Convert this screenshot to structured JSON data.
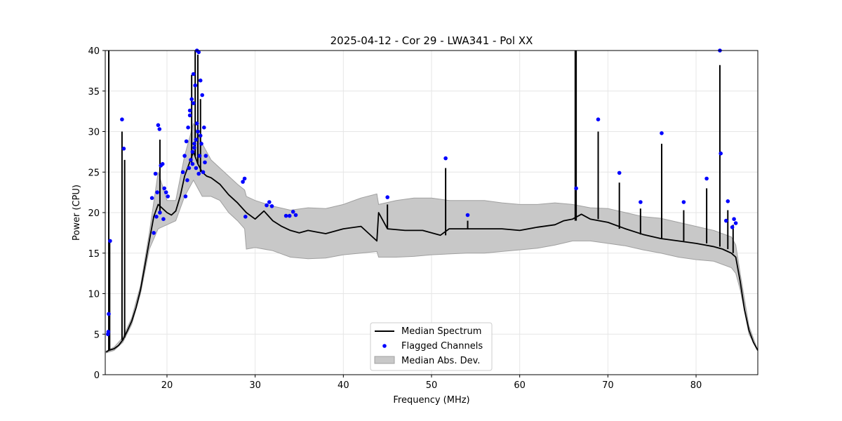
{
  "chart_data": {
    "type": "line",
    "title": "2025-04-12 - Cor 29 - LWA341 - Pol XX",
    "xlabel": "Frequency (MHz)",
    "ylabel": "Power (CPU)",
    "xlim": [
      13,
      87
    ],
    "ylim": [
      0,
      40
    ],
    "xticks": [
      20,
      30,
      40,
      50,
      60,
      70,
      80
    ],
    "xtick_labels": [
      "20",
      "30",
      "40",
      "50",
      "60",
      "70",
      "80"
    ],
    "yticks": [
      0,
      5,
      10,
      15,
      20,
      25,
      30,
      35,
      40
    ],
    "ytick_labels": [
      "0",
      "5",
      "10",
      "15",
      "20",
      "25",
      "30",
      "35",
      "40"
    ],
    "grid": true,
    "legend_position": "lower-center",
    "legend": [
      "Median Spectrum",
      "Flagged Channels",
      "Median Abs. Dev."
    ],
    "colors": {
      "median": "#000000",
      "flagged": "#0000ff",
      "mad": "#c8c8c8",
      "mad_edge": "#a0a0a0",
      "grid": "#e6e6e6"
    },
    "series": [
      {
        "name": "Median Spectrum",
        "x": [
          13.1,
          13.4,
          14,
          14.5,
          15,
          15.5,
          16,
          16.5,
          17,
          17.5,
          18,
          18.5,
          19,
          19.5,
          20,
          20.5,
          21,
          21.5,
          22,
          22.5,
          23,
          23.5,
          24,
          24.5,
          25,
          26,
          27,
          28,
          29,
          30,
          31,
          32,
          33,
          34,
          35,
          36,
          37,
          38,
          40,
          42,
          43.8,
          44,
          45,
          47,
          49,
          51,
          52,
          54,
          56,
          58,
          60,
          62,
          64,
          65,
          66,
          67,
          68,
          70,
          72,
          74,
          76,
          78,
          80,
          82,
          83,
          84,
          84.5,
          85,
          85.5,
          86,
          86.5,
          87
        ],
        "y": [
          2.8,
          3.0,
          3.2,
          3.6,
          4.3,
          5.4,
          6.6,
          8.3,
          10.5,
          13.5,
          16.5,
          19.5,
          21.0,
          20.5,
          20.0,
          19.7,
          20.2,
          22.0,
          24.5,
          26.0,
          27.5,
          26.0,
          25.0,
          24.5,
          24.3,
          23.5,
          22.2,
          21.2,
          20.0,
          19.2,
          20.2,
          19.0,
          18.3,
          17.8,
          17.5,
          17.8,
          17.6,
          17.4,
          18.0,
          18.3,
          16.5,
          20.0,
          18.0,
          17.8,
          17.8,
          17.2,
          18.0,
          18.0,
          18.0,
          18.0,
          17.8,
          18.2,
          18.5,
          19.0,
          19.2,
          19.8,
          19.2,
          18.8,
          18.0,
          17.3,
          16.8,
          16.5,
          16.2,
          15.8,
          15.5,
          15.0,
          14.5,
          11.5,
          8.0,
          5.5,
          4.0,
          3.0
        ]
      },
      {
        "name": "Median Abs. Dev.",
        "x": [
          13.1,
          14,
          15,
          16,
          17,
          18,
          19,
          20,
          21,
          22,
          23,
          24,
          25,
          26,
          27,
          28,
          28.8,
          29,
          30,
          32,
          34,
          36,
          38,
          40,
          42,
          43.8,
          44,
          46,
          48,
          50,
          52,
          54,
          56,
          58,
          60,
          62,
          64,
          66,
          68,
          70,
          72,
          74,
          76,
          78,
          80,
          82,
          84,
          84.5,
          85,
          86,
          87
        ],
        "upper": [
          2.9,
          3.4,
          4.6,
          7.0,
          11.0,
          17.5,
          25.0,
          21.5,
          21.5,
          27.0,
          31.0,
          28.5,
          26.5,
          25.5,
          24.5,
          23.5,
          22.8,
          22.0,
          21.5,
          20.8,
          20.3,
          20.6,
          20.5,
          21.0,
          21.8,
          22.3,
          21.0,
          21.5,
          21.8,
          21.8,
          21.5,
          21.5,
          21.5,
          21.2,
          21.0,
          21.0,
          21.2,
          21.0,
          20.6,
          20.5,
          20.0,
          19.5,
          19.3,
          18.8,
          18.3,
          17.8,
          17.0,
          16.0,
          12.5,
          6.0,
          3.0
        ],
        "lower": [
          2.7,
          3.0,
          4.0,
          6.2,
          10.0,
          15.5,
          18.0,
          18.5,
          19.0,
          22.0,
          24.0,
          22.0,
          22.0,
          21.5,
          20.0,
          19.0,
          18.0,
          15.5,
          15.7,
          15.3,
          14.5,
          14.3,
          14.4,
          14.8,
          15.0,
          15.2,
          14.5,
          14.5,
          14.6,
          14.8,
          14.9,
          15.0,
          15.0,
          15.2,
          15.4,
          15.6,
          16.0,
          16.5,
          16.5,
          16.2,
          15.9,
          15.4,
          15.0,
          14.5,
          14.2,
          14.0,
          13.2,
          12.5,
          10.5,
          5.0,
          3.0
        ]
      },
      {
        "name": "Spikes",
        "x": [
          13.4,
          13.5,
          14.9,
          15.2,
          19.2,
          22.8,
          23.2,
          23.5,
          23.8,
          45.0,
          51.6,
          54.1,
          66.3,
          66.4,
          68.9,
          71.3,
          73.7,
          76.1,
          78.6,
          81.2,
          82.7,
          83.6,
          84.2
        ],
        "top": [
          40,
          16.5,
          30.0,
          26.5,
          29.0,
          37.0,
          40,
          39.5,
          34.0,
          21.0,
          25.5,
          19.0,
          40,
          40,
          30.0,
          23.7,
          20.5,
          28.5,
          20.3,
          23.0,
          38.2,
          20.3,
          18.5
        ],
        "base": [
          3.0,
          3.1,
          4.3,
          4.6,
          20.0,
          26.0,
          27.0,
          26.0,
          25.0,
          18.0,
          17.2,
          18.0,
          19.0,
          19.0,
          19.2,
          18.0,
          17.3,
          16.8,
          16.5,
          16.2,
          15.8,
          15.5,
          15.0
        ]
      },
      {
        "name": "Flagged Channels",
        "x": [
          13.3,
          13.35,
          13.4,
          13.55,
          14.9,
          15.1,
          18.3,
          18.5,
          18.7,
          18.9,
          19.0,
          19.15,
          19.3,
          19.5,
          19.7,
          19.9,
          20.1,
          18.8,
          19.2,
          19.6,
          21.8,
          22.0,
          22.2,
          22.4,
          22.6,
          22.8,
          23.0,
          23.2,
          23.4,
          23.6,
          23.8,
          24.0,
          24.2,
          24.4,
          22.1,
          22.5,
          22.9,
          23.3,
          23.7,
          24.1,
          22.3,
          22.7,
          23.1,
          23.5,
          23.9,
          22.6,
          23.0,
          23.4,
          23.8,
          22.9,
          23.3,
          23.6,
          23.1,
          24.3,
          28.6,
          28.8,
          28.9,
          31.3,
          31.6,
          31.9,
          33.5,
          33.9,
          34.3,
          34.6,
          45.0,
          51.6,
          54.1,
          66.4,
          68.9,
          71.3,
          73.7,
          76.1,
          78.6,
          81.2,
          82.7,
          82.8,
          83.4,
          83.6,
          84.1,
          84.3,
          84.5
        ],
        "y": [
          5.0,
          5.3,
          7.5,
          16.5,
          31.5,
          27.9,
          21.8,
          17.5,
          24.8,
          22.5,
          30.8,
          30.3,
          25.8,
          26.0,
          23.0,
          22.5,
          22.0,
          19.5,
          20.0,
          19.2,
          25.0,
          27.0,
          28.8,
          30.5,
          32.6,
          34.0,
          37.1,
          35.7,
          40.0,
          39.8,
          36.3,
          34.5,
          30.5,
          27.0,
          22.0,
          25.5,
          27.5,
          29.0,
          27.0,
          25.0,
          24.0,
          26.5,
          28.5,
          30.0,
          28.5,
          32.0,
          33.5,
          31.0,
          29.5,
          26.0,
          25.5,
          24.8,
          28.0,
          26.2,
          23.8,
          24.2,
          19.5,
          20.9,
          21.3,
          20.8,
          19.6,
          19.6,
          20.1,
          19.7,
          21.9,
          26.7,
          19.7,
          23.0,
          31.5,
          24.9,
          21.3,
          29.8,
          21.3,
          24.2,
          40.0,
          27.3,
          19.0,
          21.4,
          18.2,
          19.2,
          18.7
        ]
      }
    ]
  }
}
